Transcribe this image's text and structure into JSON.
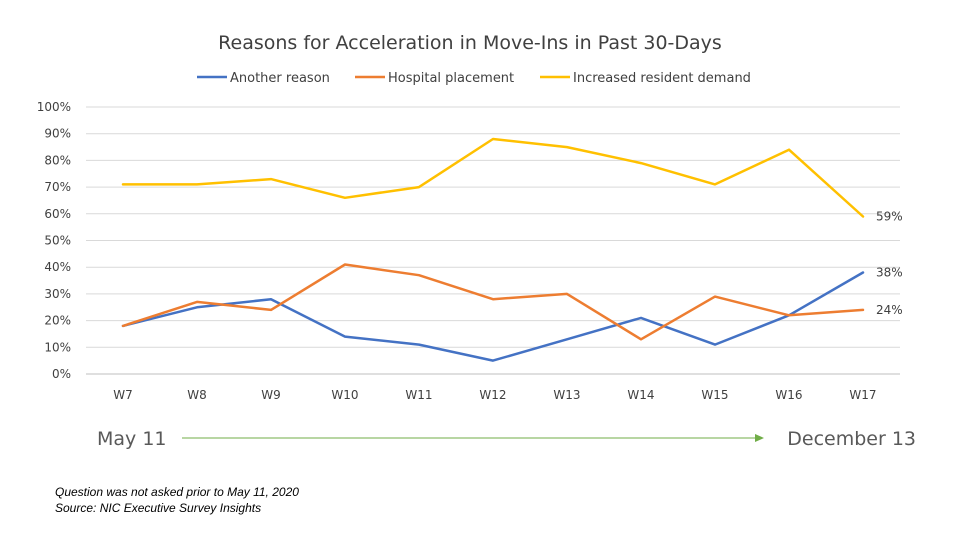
{
  "chart_data": {
    "type": "line",
    "title": "Reasons for Acceleration in Move-Ins in Past 30-Days",
    "categories": [
      "W7",
      "W8",
      "W9",
      "W10",
      "W11",
      "W12",
      "W13",
      "W14",
      "W15",
      "W16",
      "W17"
    ],
    "ylim": [
      0,
      100
    ],
    "yticks": [
      "0%",
      "10%",
      "20%",
      "30%",
      "40%",
      "50%",
      "60%",
      "70%",
      "80%",
      "90%",
      "100%"
    ],
    "grid": true,
    "legend_position": "top",
    "series": [
      {
        "name": "Another reason",
        "color": "#4472C4",
        "values": [
          18,
          25,
          28,
          14,
          11,
          5,
          13,
          21,
          11,
          22,
          38
        ],
        "end_label": "38%"
      },
      {
        "name": "Hospital placement",
        "color": "#ED7D31",
        "values": [
          18,
          27,
          24,
          41,
          37,
          28,
          30,
          13,
          29,
          22,
          24
        ],
        "end_label": "24%"
      },
      {
        "name": "Increased resident demand",
        "color": "#FFC000",
        "values": [
          71,
          71,
          73,
          66,
          70,
          88,
          85,
          79,
          71,
          84,
          59
        ],
        "end_label": "59%"
      }
    ]
  },
  "timeline": {
    "start_label": "May 11",
    "end_label": "December 13",
    "arrow_color": "#70AD47"
  },
  "notes": {
    "line1": "Question was not asked prior to May 11, 2020",
    "line2": "Source: NIC Executive Survey Insights"
  }
}
